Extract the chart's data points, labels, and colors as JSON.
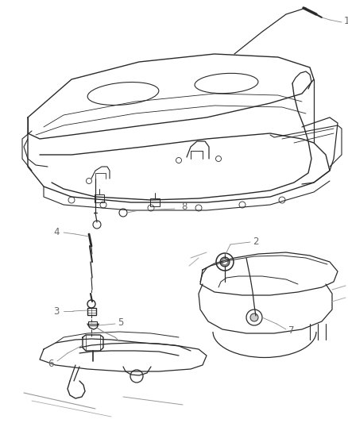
{
  "background_color": "#ffffff",
  "line_color": "#2a2a2a",
  "label_color": "#666666",
  "leader_color": "#888888",
  "fig_width": 4.38,
  "fig_height": 5.33,
  "dpi": 100
}
